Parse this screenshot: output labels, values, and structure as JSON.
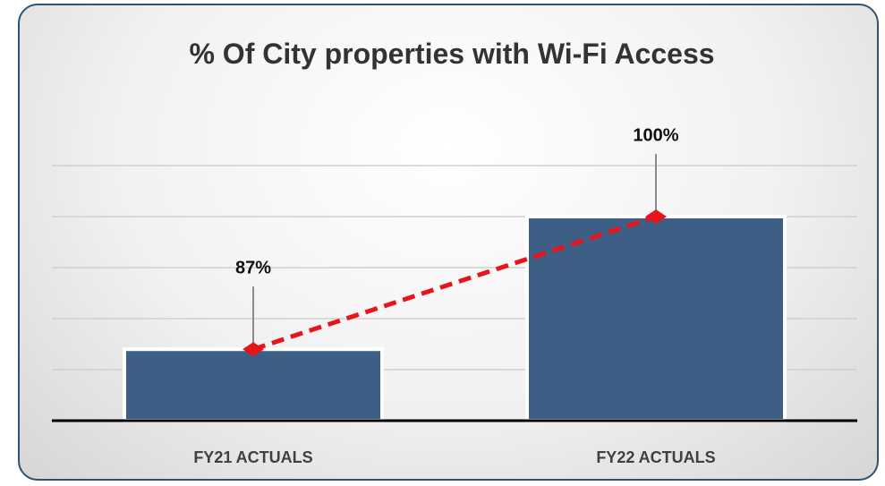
{
  "chart_data": {
    "type": "bar",
    "title": "% Of City properties with Wi-Fi Access",
    "categories": [
      "FY21 ACTUALS",
      "FY22 ACTUALS"
    ],
    "values": [
      87,
      100
    ],
    "value_labels": [
      "87%",
      "100%"
    ],
    "color": "#3d5f85",
    "line_color": "#e8141b",
    "ylim": [
      80,
      105
    ],
    "yticks": [
      80,
      85,
      90,
      95,
      100,
      105
    ],
    "grid": true,
    "tick_labels": false
  }
}
